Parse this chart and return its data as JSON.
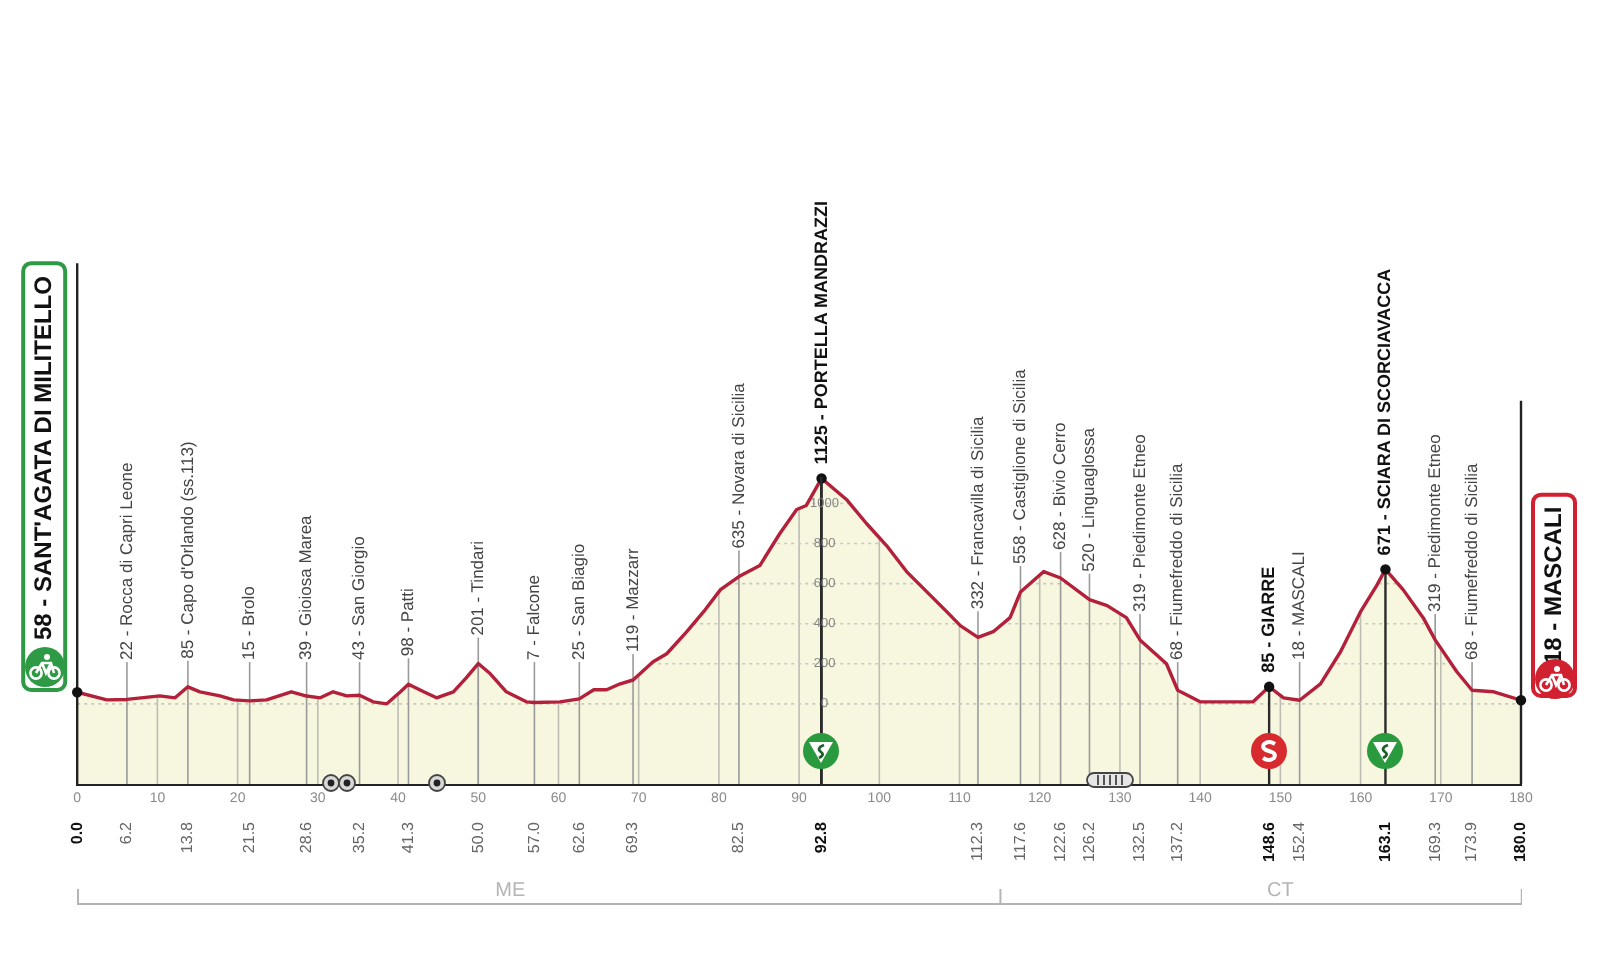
{
  "chart_data": {
    "type": "area",
    "color": "#b3203a",
    "x": [
      0,
      3.7,
      6.2,
      10.3,
      12.2,
      13.8,
      15.3,
      17.8,
      19.5,
      21.5,
      23.6,
      26.7,
      28.6,
      30.3,
      31.9,
      33.6,
      35.2,
      36.9,
      38.6,
      40.3,
      41.3,
      43.2,
      44.8,
      46.9,
      48.5,
      50,
      51.5,
      53.5,
      56,
      57,
      60.2,
      62.6,
      64.4,
      66,
      67.7,
      69.3,
      71.8,
      73.5,
      76,
      78.1,
      80.2,
      82.5,
      85.1,
      87.6,
      89.7,
      90.9,
      92.8,
      95.9,
      98.4,
      100.9,
      103.4,
      105.9,
      108.4,
      110.1,
      112.3,
      114.2,
      116.3,
      117.6,
      120.5,
      122.6,
      126.2,
      128.4,
      130.8,
      132.5,
      135.8,
      137.2,
      140,
      143.3,
      146.6,
      148.6,
      150.4,
      152.4,
      155,
      157.5,
      160,
      162,
      163.1,
      165.3,
      167.8,
      169.3,
      172,
      173.9,
      176.6,
      180
    ],
    "values": [
      58,
      20,
      22,
      40,
      30,
      85,
      60,
      40,
      20,
      15,
      20,
      60,
      39,
      30,
      60,
      40,
      43,
      10,
      0,
      60,
      98,
      60,
      30,
      60,
      130,
      201,
      150,
      60,
      10,
      7,
      10,
      25,
      70,
      70,
      100,
      119,
      210,
      250,
      360,
      460,
      570,
      635,
      690,
      850,
      970,
      990,
      1125,
      1020,
      900,
      790,
      660,
      560,
      460,
      390,
      332,
      360,
      430,
      558,
      660,
      628,
      520,
      490,
      430,
      319,
      200,
      68,
      10,
      10,
      10,
      85,
      30,
      18,
      100,
      260,
      460,
      590,
      671,
      570,
      430,
      319,
      160,
      68,
      60,
      18
    ],
    "xlim": [
      0,
      180
    ],
    "xticks": [
      0,
      10,
      20,
      30,
      40,
      50,
      60,
      70,
      80,
      90,
      100,
      110,
      120,
      130,
      140,
      150,
      160,
      170,
      180
    ],
    "x2lim": [
      0,
      180
    ],
    "x2ticks": [
      {
        "value": 0,
        "label": "0.0"
      },
      6.2,
      13.8,
      21.5,
      28.6,
      35.2,
      41.3,
      {
        "value": 50,
        "label": "50.0"
      },
      {
        "value": 57,
        "label": "57.0"
      },
      62.6,
      69.3,
      82.5,
      92.8,
      112.3,
      117.6,
      122.6,
      126.2,
      132.5,
      137.2,
      148.6,
      152.4,
      163.1,
      169.3,
      173.9,
      {
        "value": 180,
        "label": "180.0"
      }
    ],
    "ylim": [
      -400,
      1125
    ],
    "yticks": [
      0,
      200,
      400,
      600,
      800,
      1000
    ],
    "grid": true,
    "annotations": [
      {
        "text": "58 - SANT'AGATA DI MILITELLO",
        "x": 0,
        "y": 58
      },
      {
        "text": "22 - Rocca di Capri Leone",
        "x": 6.2,
        "y": 22
      },
      {
        "text": "85 - Capo d'Orlando (ss.113)",
        "x": 13.8,
        "y": 85
      },
      {
        "text": "15 - Brolo",
        "x": 21.5,
        "y": 15
      },
      {
        "text": "39 - Gioiosa Marea",
        "x": 28.6,
        "y": 39
      },
      {
        "text": "43 - San Giorgio",
        "x": 35.2,
        "y": 43
      },
      {
        "text": "98 - Patti",
        "x": 41.3,
        "y": 98
      },
      {
        "text": "201 - Tindari",
        "x": 50,
        "y": 201
      },
      {
        "text": "7 - Falcone",
        "x": 57,
        "y": 7
      },
      {
        "text": "25 - San Biagio",
        "x": 62.6,
        "y": 25
      },
      {
        "text": "119 - Mazzarr",
        "x": 69.3,
        "y": 119
      },
      {
        "text": "635 - Novara di Sicilia",
        "x": 82.5,
        "y": 635
      },
      {
        "text": "1125 - PORTELLA MANDRAZZI",
        "x": 92.8,
        "y": 1125
      },
      {
        "text": "332 - Francavilla di Sicilia",
        "x": 112.3,
        "y": 332
      },
      {
        "text": "558 - Castiglione di Sicilia",
        "x": 117.6,
        "y": 558
      },
      {
        "text": "628 - Bivio Cerro",
        "x": 122.6,
        "y": 628
      },
      {
        "text": "520 - Linguaglossa",
        "x": 126.2,
        "y": 520
      },
      {
        "text": "319 - Piedimonte Etneo",
        "x": 132.5,
        "y": 319
      },
      {
        "text": "68 - Fiumefreddo di Sicilia",
        "x": 137.2,
        "y": 68
      },
      {
        "text": "85 - GIARRE",
        "x": 148.6,
        "y": 85
      },
      {
        "text": "18 - MASCALI",
        "x": 152.4,
        "y": 18
      },
      {
        "text": "671 - SCIARA DI SCORCIAVACCA",
        "x": 163.1,
        "y": 671
      },
      {
        "text": "319 - Piedimonte Etneo",
        "x": 169.3,
        "y": 319
      },
      {
        "text": "68 - Fiumefreddo di Sicilia",
        "x": 173.9,
        "y": 68
      },
      {
        "text": "18 - MASCALI",
        "x": 180,
        "y": 18
      },
      "ME",
      "CT"
    ],
    "bands": [
      {
        "axis": "y",
        "from": -400,
        "to": 0,
        "color": "#f7f6df"
      }
    ]
  }
}
